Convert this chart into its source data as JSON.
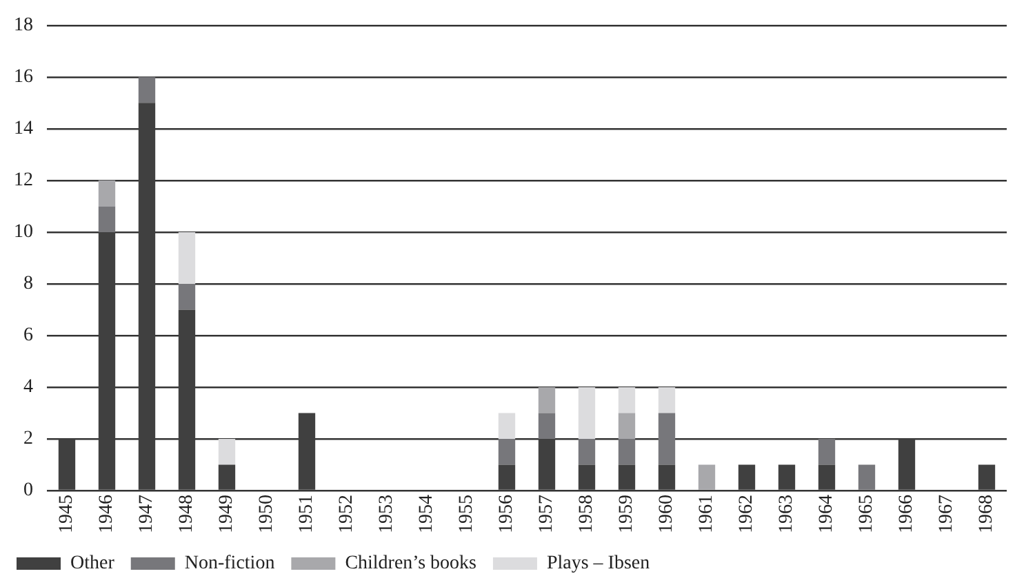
{
  "chart_data": {
    "type": "bar",
    "stacked": true,
    "categories": [
      "1945",
      "1946",
      "1947",
      "1948",
      "1949",
      "1950",
      "1951",
      "1952",
      "1953",
      "1954",
      "1955",
      "1956",
      "1957",
      "1958",
      "1959",
      "1960",
      "1961",
      "1962",
      "1963",
      "1964",
      "1965",
      "1966",
      "1967",
      "1968"
    ],
    "series": [
      {
        "name": "Other",
        "color": "#404040",
        "values": [
          2,
          10,
          15,
          7,
          1,
          0,
          3,
          0,
          0,
          0,
          0,
          1,
          2,
          1,
          1,
          1,
          0,
          1,
          1,
          1,
          0,
          2,
          0,
          1
        ]
      },
      {
        "name": "Non-fiction",
        "color": "#77777b",
        "values": [
          0,
          1,
          1,
          1,
          0,
          0,
          0,
          0,
          0,
          0,
          0,
          1,
          1,
          1,
          1,
          2,
          0,
          0,
          0,
          1,
          1,
          0,
          0,
          0
        ]
      },
      {
        "name": "Children’s books",
        "color": "#a8a8ab",
        "values": [
          0,
          1,
          0,
          0,
          0,
          0,
          0,
          0,
          0,
          0,
          0,
          0,
          1,
          0,
          1,
          0,
          1,
          0,
          0,
          0,
          0,
          0,
          0,
          0
        ]
      },
      {
        "name": "Plays – Ibsen",
        "color": "#dcdcde",
        "values": [
          0,
          0,
          0,
          2,
          1,
          0,
          0,
          0,
          0,
          0,
          0,
          1,
          0,
          2,
          1,
          1,
          0,
          0,
          0,
          0,
          0,
          0,
          0,
          0
        ]
      }
    ],
    "ylim": [
      0,
      18
    ],
    "yticks": [
      0,
      2,
      4,
      6,
      8,
      10,
      12,
      14,
      16,
      18
    ],
    "grid": "y",
    "legend": "bottom"
  }
}
